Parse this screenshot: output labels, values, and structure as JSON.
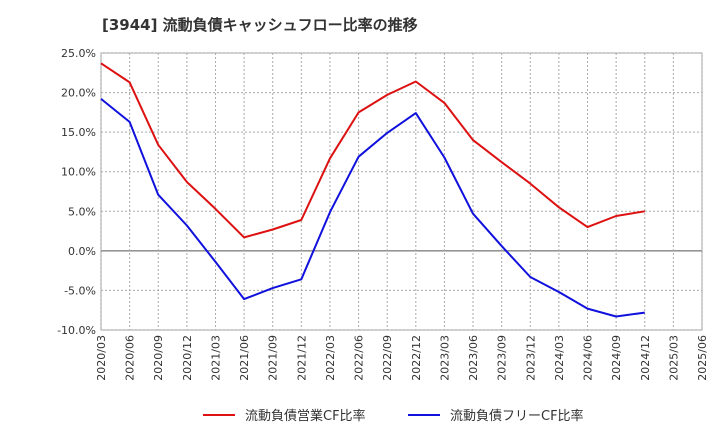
{
  "chart_data": {
    "type": "line",
    "title": "[3944]  流動負債キャッシュフロー比率の推移",
    "x_tick_labels": [
      "2020/03",
      "2020/06",
      "2020/09",
      "2020/12",
      "2021/03",
      "2021/06",
      "2021/09",
      "2021/12",
      "2022/03",
      "2022/06",
      "2022/09",
      "2022/12",
      "2023/03",
      "2023/06",
      "2023/09",
      "2023/12",
      "2024/03",
      "2024/06",
      "2024/09",
      "2024/12",
      "2025/03",
      "2025/06"
    ],
    "y_tick_labels": [
      "25.0%",
      "20.0%",
      "15.0%",
      "10.0%",
      "5.0%",
      "0.0%",
      "-5.0%",
      "-10.0%"
    ],
    "ylim": [
      -10,
      25
    ],
    "grid": true,
    "legend_position": "bottom",
    "series": [
      {
        "name": "流動負債営業CF比率",
        "color": "#dd1111",
        "x": [
          "2020/03",
          "2020/06",
          "2020/09",
          "2020/12",
          "2021/03",
          "2021/06",
          "2021/09",
          "2021/12",
          "2022/03",
          "2022/06",
          "2022/09",
          "2022/12",
          "2023/03",
          "2023/06",
          "2023/09",
          "2023/12",
          "2024/03",
          "2024/06",
          "2024/09",
          "2024/12"
        ],
        "values": [
          23.7,
          21.3,
          13.4,
          8.7,
          5.3,
          1.7,
          2.7,
          3.9,
          11.7,
          17.5,
          19.7,
          21.4,
          18.7,
          14.0,
          11.2,
          8.5,
          5.5,
          3.0,
          4.4,
          5.0
        ]
      },
      {
        "name": "流動負債フリーCF比率",
        "color": "#1111dd",
        "x": [
          "2020/03",
          "2020/06",
          "2020/09",
          "2020/12",
          "2021/03",
          "2021/06",
          "2021/09",
          "2021/12",
          "2022/03",
          "2022/06",
          "2022/09",
          "2022/12",
          "2023/03",
          "2023/06",
          "2023/09",
          "2023/12",
          "2024/03",
          "2024/06",
          "2024/09",
          "2024/12"
        ],
        "values": [
          19.2,
          16.3,
          7.1,
          3.2,
          -1.4,
          -6.1,
          -4.7,
          -3.6,
          4.9,
          11.9,
          14.9,
          17.4,
          11.8,
          4.7,
          0.6,
          -3.3,
          -5.2,
          -7.3,
          -8.3,
          -7.8
        ]
      }
    ]
  }
}
